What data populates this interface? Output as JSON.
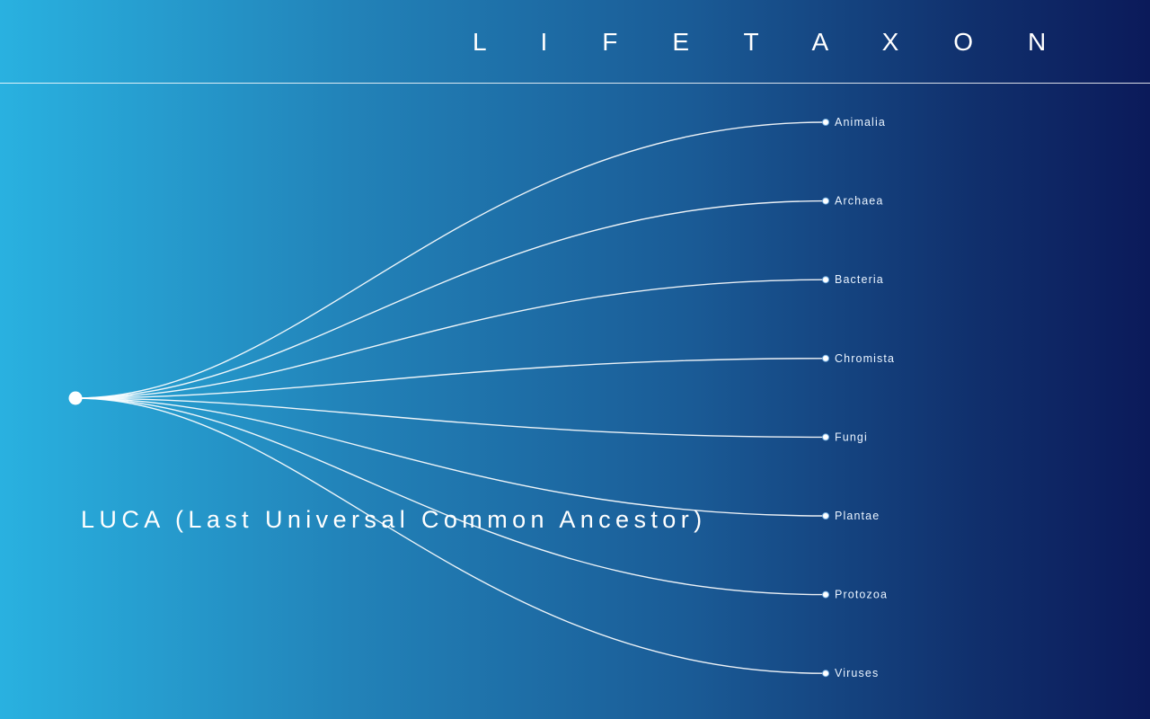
{
  "header": {
    "brand": "L I F E T A X O N"
  },
  "root": {
    "label": "LUCA (Last Universal Common Ancestor)"
  },
  "leaves": [
    {
      "label": "Animalia"
    },
    {
      "label": "Archaea"
    },
    {
      "label": "Bacteria"
    },
    {
      "label": "Chromista"
    },
    {
      "label": "Fungi"
    },
    {
      "label": "Plantae"
    },
    {
      "label": "Protozoa"
    },
    {
      "label": "Viruses"
    }
  ]
}
